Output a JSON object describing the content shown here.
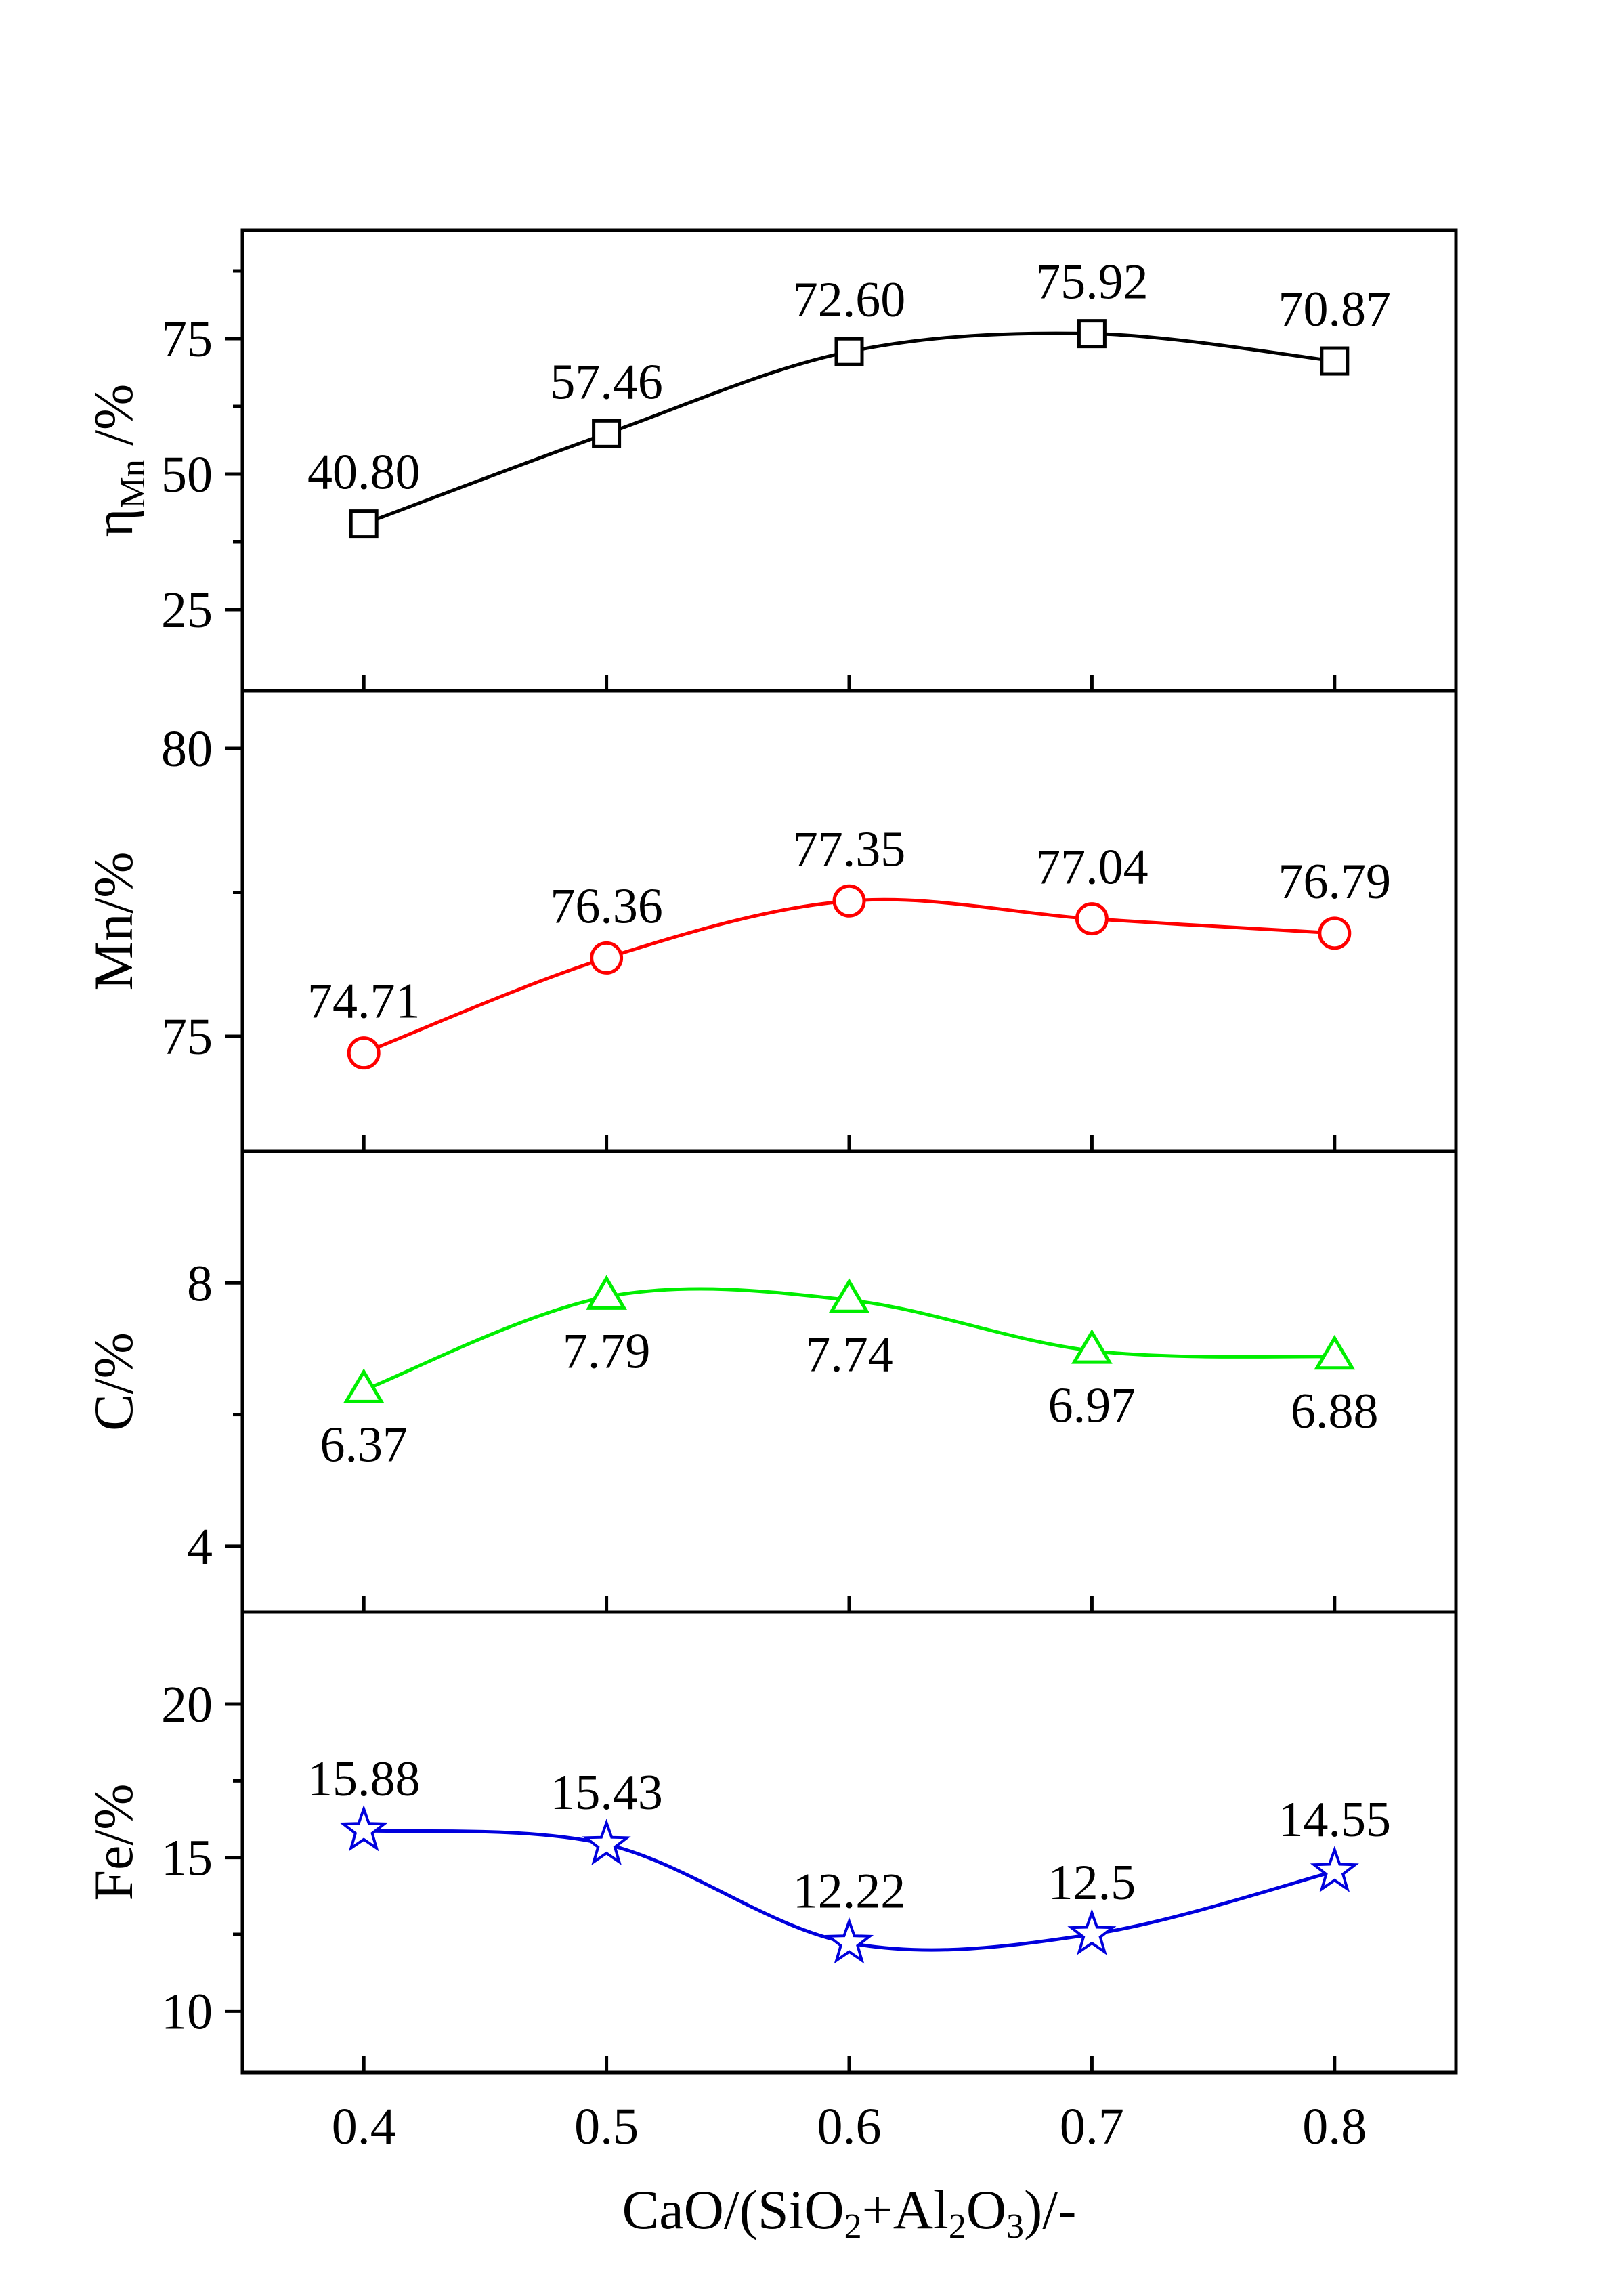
{
  "chart_data": {
    "type": "line",
    "layout": "stacked-panels-shared-x",
    "x": [
      0.4,
      0.5,
      0.6,
      0.7,
      0.8
    ],
    "x_tick_labels": [
      "0.4",
      "0.5",
      "0.6",
      "0.7",
      "0.8"
    ],
    "xlim": [
      0.35,
      0.85
    ],
    "xlabel": {
      "parts": [
        {
          "t": "CaO/(SiO",
          "sub": false
        },
        {
          "t": "2",
          "sub": true
        },
        {
          "t": "+Al",
          "sub": false
        },
        {
          "t": "2",
          "sub": true
        },
        {
          "t": "O",
          "sub": false
        },
        {
          "t": "3",
          "sub": true
        },
        {
          "t": ")/-",
          "sub": false
        }
      ]
    },
    "panels": [
      {
        "ylabel": {
          "main": "η",
          "sub": "Mn",
          "suffix": " /%"
        },
        "ylim": [
          10,
          95
        ],
        "yticks": [
          25,
          50,
          75
        ],
        "y_tick_labels": [
          "25",
          "50",
          "75"
        ],
        "y_minor_ticks": [
          37.5,
          62.5,
          87.5
        ],
        "marker": "square",
        "color": "#000000",
        "values": [
          40.8,
          57.46,
          72.6,
          75.92,
          70.87
        ],
        "data_labels": [
          "40.80",
          "57.46",
          "72.60",
          "75.92",
          "70.87"
        ],
        "label_position": [
          "above",
          "above",
          "above",
          "above",
          "above"
        ]
      },
      {
        "ylabel": {
          "main": "Mn/%",
          "sub": "",
          "suffix": ""
        },
        "ylim": [
          73,
          81
        ],
        "yticks": [
          75,
          80
        ],
        "y_tick_labels": [
          "75",
          "80"
        ],
        "y_minor_ticks": [
          77.5
        ],
        "marker": "circle",
        "color": "#ff0000",
        "values": [
          74.71,
          76.36,
          77.35,
          77.04,
          76.79
        ],
        "data_labels": [
          "74.71",
          "76.36",
          "77.35",
          "77.04",
          "76.79"
        ],
        "label_position": [
          "above",
          "above",
          "above",
          "above",
          "above"
        ]
      },
      {
        "ylabel": {
          "main": "C/%",
          "sub": "",
          "suffix": ""
        },
        "ylim": [
          3,
          10
        ],
        "yticks": [
          4,
          8
        ],
        "y_tick_labels": [
          "4",
          "8"
        ],
        "y_minor_ticks": [
          6
        ],
        "marker": "triangle",
        "color": "#00ee00",
        "values": [
          6.37,
          7.79,
          7.74,
          6.97,
          6.88
        ],
        "data_labels": [
          "6.37",
          "7.79",
          "7.74",
          "6.97",
          "6.88"
        ],
        "label_position": [
          "below",
          "below",
          "below",
          "below",
          "below"
        ]
      },
      {
        "ylabel": {
          "main": "Fe/%",
          "sub": "",
          "suffix": ""
        },
        "ylim": [
          8,
          23
        ],
        "yticks": [
          10,
          15,
          20
        ],
        "y_tick_labels": [
          "10",
          "15",
          "20"
        ],
        "y_minor_ticks": [
          12.5,
          17.5
        ],
        "marker": "star",
        "color": "#0000dd",
        "values": [
          15.88,
          15.43,
          12.22,
          12.5,
          14.55
        ],
        "data_labels": [
          "15.88",
          "15.43",
          "12.22",
          "12.5",
          "14.55"
        ],
        "label_position": [
          "above",
          "above",
          "above",
          "above",
          "above"
        ]
      }
    ]
  }
}
